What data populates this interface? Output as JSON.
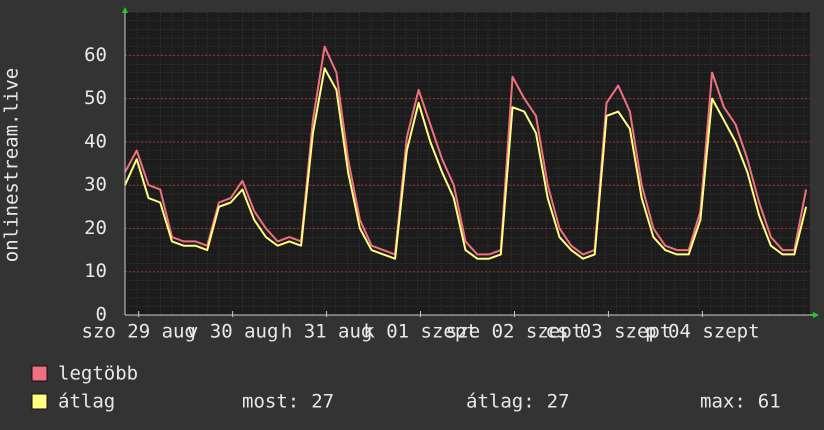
{
  "chart_data": {
    "type": "line",
    "ylabel": "onlinestream.live",
    "x": [
      0,
      3,
      6,
      9,
      12,
      15,
      18,
      21,
      24,
      27,
      30,
      33,
      36,
      39,
      42,
      45,
      48,
      51,
      54,
      57,
      60,
      63,
      66,
      69,
      72,
      75,
      78,
      81,
      84,
      87,
      90,
      93,
      96,
      99,
      102,
      105,
      108,
      111,
      114,
      117,
      120,
      123,
      126,
      129,
      132,
      135,
      138,
      141,
      144,
      147,
      150,
      153,
      156,
      159,
      162,
      165,
      168,
      171,
      174
    ],
    "xlim": [
      0,
      175
    ],
    "xticks": [
      {
        "value": 3.5,
        "label": "szo 29 aug"
      },
      {
        "value": 27.5,
        "label": "v 30 aug"
      },
      {
        "value": 51.5,
        "label": "h 31 aug"
      },
      {
        "value": 75.5,
        "label": "k 01 szept"
      },
      {
        "value": 99.5,
        "label": "sze 02 szept"
      },
      {
        "value": 123.5,
        "label": "cs 03 szept"
      },
      {
        "value": 147.5,
        "label": "p 04 szept"
      }
    ],
    "ylim": [
      0,
      70
    ],
    "yticks": [
      0,
      10,
      20,
      30,
      40,
      50,
      60
    ],
    "grid": true,
    "series": [
      {
        "name": "legtöbb",
        "color": "#f07080",
        "values": [
          33,
          38,
          30,
          29,
          18,
          17,
          17,
          16,
          26,
          27,
          31,
          24,
          20,
          17,
          18,
          17,
          45,
          62,
          56,
          36,
          22,
          16,
          15,
          14,
          41,
          52,
          44,
          36,
          30,
          17,
          14,
          14,
          15,
          55,
          50,
          46,
          30,
          20,
          16,
          14,
          15,
          49,
          53,
          47,
          30,
          20,
          16,
          15,
          15,
          24,
          56,
          48,
          44,
          36,
          26,
          18,
          15,
          15,
          29
        ]
      },
      {
        "name": "átlag",
        "color": "#ffff80",
        "values": [
          30,
          36,
          27,
          26,
          17,
          16,
          16,
          15,
          25,
          26,
          29,
          22,
          18,
          16,
          17,
          16,
          42,
          57,
          52,
          33,
          20,
          15,
          14,
          13,
          38,
          49,
          40,
          33,
          27,
          15,
          13,
          13,
          14,
          48,
          47,
          42,
          27,
          18,
          15,
          13,
          14,
          46,
          47,
          43,
          27,
          18,
          15,
          14,
          14,
          22,
          50,
          45,
          40,
          33,
          23,
          16,
          14,
          14,
          25
        ]
      }
    ],
    "stats": [
      {
        "label": "most:",
        "value": 27
      },
      {
        "label": "átlag:",
        "value": 27
      },
      {
        "label": "max:",
        "value": 61
      }
    ]
  }
}
